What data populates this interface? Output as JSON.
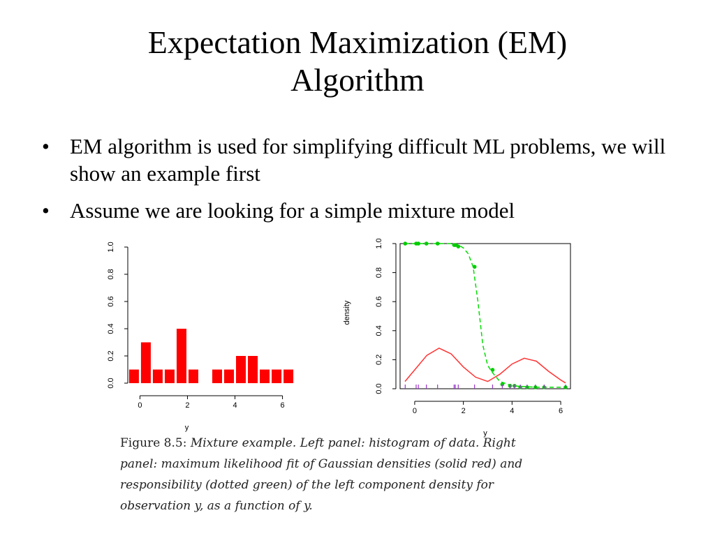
{
  "slide": {
    "title_line1": "Expectation Maximization (EM)",
    "title_line2": "Algorithm",
    "bullets": [
      "EM algorithm is used for simplifying difficult ML problems, we will show an example first",
      "Assume we are looking for a simple mixture model"
    ],
    "bullet_symbol": "•"
  },
  "caption": {
    "figure_label": "Figure 8.5:",
    "text": "Mixture example. Left panel: histogram of data. Right panel: maximum likelihood fit of Gaussian densities (solid red) and responsibility (dotted green) of the left component density for observation y, as a function of y."
  },
  "chart_data": [
    {
      "type": "bar",
      "title": "",
      "xlabel": "y",
      "ylabel": "",
      "categories": [
        -0.25,
        0.25,
        0.75,
        1.25,
        1.75,
        2.25,
        2.75,
        3.25,
        3.75,
        4.25,
        4.75,
        5.25,
        5.75,
        6.25
      ],
      "values": [
        0.1,
        0.3,
        0.1,
        0.1,
        0.4,
        0.1,
        0,
        0.1,
        0.1,
        0.2,
        0.2,
        0.1,
        0.1,
        0.1
      ],
      "bar_width": 0.5,
      "xlim": [
        -0.6,
        6.6
      ],
      "ylim": [
        0,
        1.0
      ],
      "xticks": [
        0,
        2,
        4,
        6
      ],
      "yticks": [
        "0.0",
        "0.2",
        "0.4",
        "0.6",
        "0.8",
        "1.0"
      ],
      "color": "#ff0000"
    },
    {
      "type": "line",
      "title": "",
      "xlabel": "y",
      "ylabel": "density",
      "xlim": [
        -0.6,
        6.4
      ],
      "ylim": [
        0,
        1.0
      ],
      "xticks": [
        0,
        2,
        4,
        6
      ],
      "yticks": [
        "0.0",
        "0.2",
        "0.4",
        "0.6",
        "0.8",
        "1.0"
      ],
      "series": [
        {
          "name": "Gaussian densities (solid red)",
          "style": "solid",
          "color": "#ff3333",
          "x": [
            -0.4,
            0,
            0.5,
            1.0,
            1.5,
            2.0,
            2.5,
            3.0,
            3.5,
            4.0,
            4.5,
            5.0,
            5.5,
            6.0,
            6.2
          ],
          "y": [
            0.05,
            0.13,
            0.23,
            0.28,
            0.24,
            0.15,
            0.08,
            0.05,
            0.1,
            0.17,
            0.21,
            0.19,
            0.12,
            0.06,
            0.04
          ]
        },
        {
          "name": "responsibility (dotted green)",
          "style": "dashed",
          "color": "#00dd00",
          "x": [
            -0.4,
            0,
            0.5,
            1.0,
            1.5,
            1.8,
            2.0,
            2.2,
            2.4,
            2.6,
            2.8,
            3.0,
            3.2,
            3.5,
            4.0,
            5.0,
            6.2
          ],
          "y": [
            1.0,
            1.0,
            1.0,
            1.0,
            1.0,
            0.99,
            0.97,
            0.93,
            0.84,
            0.6,
            0.3,
            0.16,
            0.11,
            0.05,
            0.02,
            0.01,
            0.01
          ]
        }
      ],
      "points": {
        "name": "responsibility at observations",
        "color": "#00cc00",
        "x": [
          -0.39,
          0.06,
          0.15,
          0.48,
          0.94,
          1.62,
          1.67,
          1.79,
          2.46,
          3.2,
          3.6,
          3.92,
          4.1,
          4.34,
          4.62,
          4.96,
          5.32,
          6.2
        ],
        "y": [
          1.0,
          1.0,
          1.0,
          1.0,
          1.0,
          0.99,
          0.99,
          0.98,
          0.84,
          0.13,
          0.03,
          0.02,
          0.02,
          0.01,
          0.01,
          0.01,
          0.01,
          0.01
        ]
      },
      "rug": {
        "color": "#9933cc",
        "x": [
          -0.39,
          0.06,
          0.15,
          0.48,
          0.94,
          1.62,
          1.67,
          1.79,
          2.46,
          3.2,
          3.6,
          3.92,
          4.1,
          4.34,
          4.62,
          4.96,
          5.32,
          6.2
        ]
      }
    }
  ]
}
